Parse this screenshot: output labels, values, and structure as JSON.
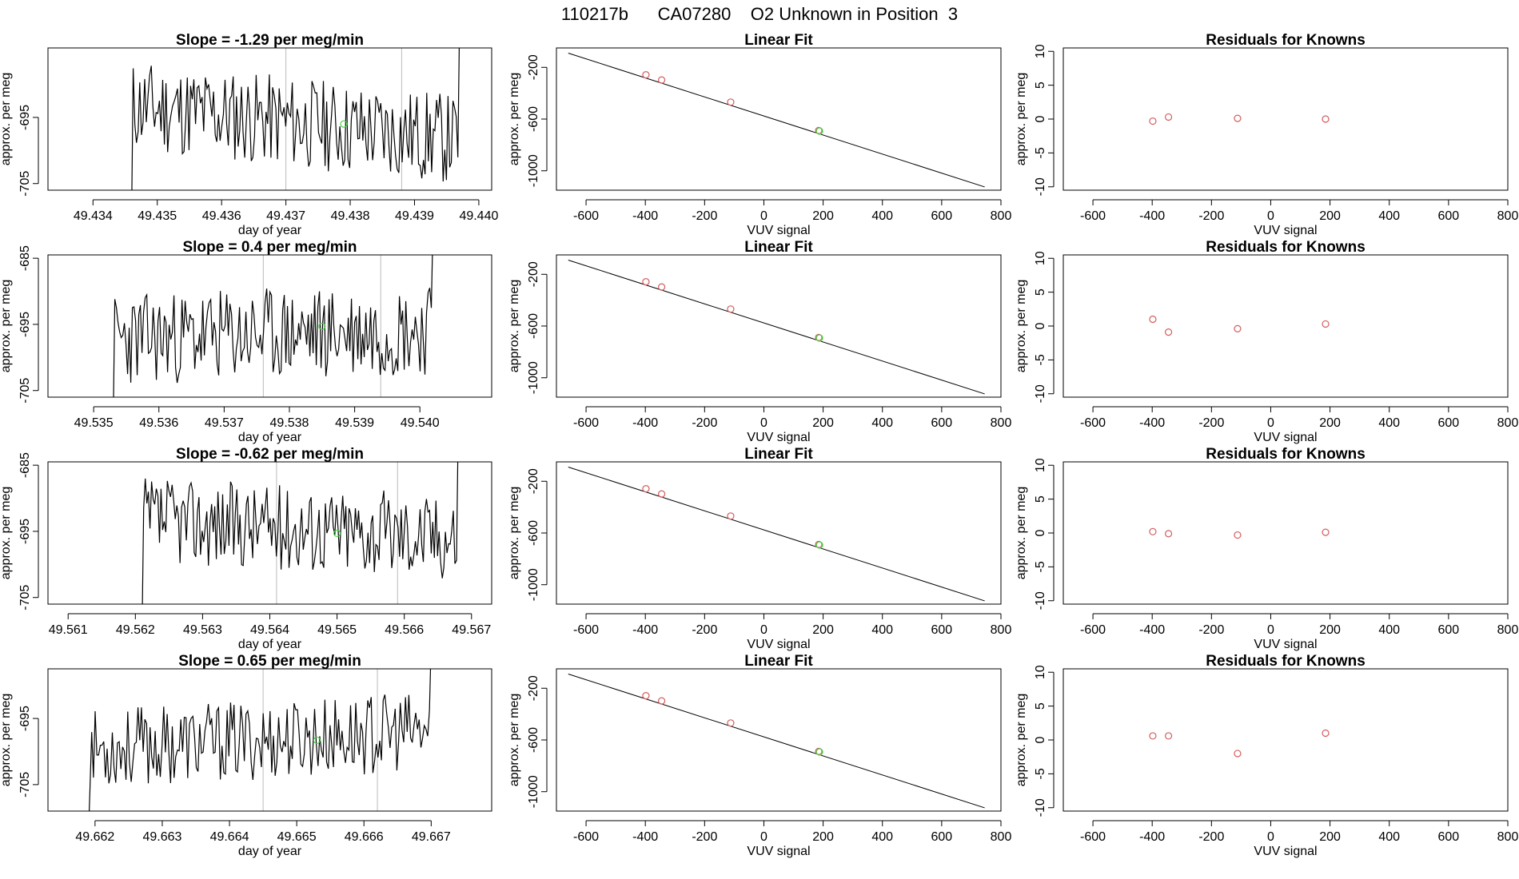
{
  "title": "110217b      CA07280    O2 Unknown in Position  3",
  "colors": {
    "line": "#000000",
    "frame": "#000000",
    "marker_known": "#d35c5c",
    "marker_unknown": "#44d444",
    "vline": "#bbbbbb"
  },
  "chart_data": [
    {
      "type": "line",
      "panel": "timeseries-1",
      "title": "Slope =  -1.29  per meg/min",
      "xlabel": "day of year",
      "ylabel": "approx. per meg",
      "xlim": [
        49.4333,
        49.4402
      ],
      "ylim": [
        -706,
        -684.5
      ],
      "xticks": [
        "49.434",
        "49.435",
        "49.436",
        "49.437",
        "49.438",
        "49.439",
        "49.440"
      ],
      "xtick_values": [
        49.434,
        49.435,
        49.436,
        49.437,
        49.438,
        49.439,
        49.44
      ],
      "yticks": [
        "-695",
        "-705"
      ],
      "ytick_values": [
        -695,
        -705
      ],
      "vlines": [
        49.437,
        49.4388
      ],
      "series_start": 49.4346,
      "series_end": 49.4397,
      "seed": 11,
      "trend": -1.29,
      "mean": -695.8,
      "amp": 7,
      "unknown_point": {
        "x": 49.4379,
        "y": -696
      }
    },
    {
      "type": "scatter",
      "panel": "linfit-1",
      "title": "Linear Fit",
      "xlabel": "VUV signal",
      "ylabel": "approx. per meg",
      "xlim": [
        -700,
        800
      ],
      "ylim": [
        -1150,
        -50
      ],
      "xticks": [
        "-600",
        "-400",
        "-200",
        "0",
        "200",
        "400",
        "600",
        "800"
      ],
      "xtick_values": [
        -600,
        -400,
        -200,
        0,
        200,
        400,
        600,
        800
      ],
      "yticks": [
        "-200",
        "-600",
        "-1000"
      ],
      "ytick_values": [
        -200,
        -600,
        -1000
      ],
      "fit_line": {
        "x": [
          -660,
          745
        ],
        "y": [
          -90,
          -1125
        ]
      },
      "points": {
        "x": [
          -398,
          -345,
          -112,
          185
        ],
        "y": [
          -258,
          -298,
          -469,
          -689
        ]
      },
      "unknown_point": {
        "x": 188,
        "y": -693
      }
    },
    {
      "type": "scatter",
      "panel": "resid-1",
      "title": "Residuals for Knowns",
      "xlabel": "VUV signal",
      "ylabel": "approx. per meg",
      "xlim": [
        -700,
        800
      ],
      "ylim": [
        -10.5,
        10.5
      ],
      "xticks": [
        "-600",
        "-400",
        "-200",
        "0",
        "200",
        "400",
        "600",
        "800"
      ],
      "xtick_values": [
        -600,
        -400,
        -200,
        0,
        200,
        400,
        600,
        800
      ],
      "yticks": [
        "-10",
        "-5",
        "0",
        "5",
        "10"
      ],
      "ytick_values": [
        -10,
        -5,
        0,
        5,
        10
      ],
      "points": {
        "x": [
          -398,
          -345,
          -112,
          185
        ],
        "y": [
          -0.3,
          0.3,
          0.1,
          0.0
        ]
      }
    },
    {
      "type": "line",
      "panel": "timeseries-2",
      "title": "Slope =  0.4  per meg/min",
      "xlabel": "day of year",
      "ylabel": "approx. per meg",
      "xlim": [
        49.5343,
        49.5411
      ],
      "ylim": [
        -706,
        -684.5
      ],
      "xticks": [
        "49.535",
        "49.536",
        "49.537",
        "49.538",
        "49.539",
        "49.540"
      ],
      "xtick_values": [
        49.535,
        49.536,
        49.537,
        49.538,
        49.539,
        49.54
      ],
      "yticks": [
        "-685",
        "-695",
        "-705"
      ],
      "ytick_values": [
        -685,
        -695,
        -705
      ],
      "vlines": [
        49.5376,
        49.5394
      ],
      "series_start": 49.5353,
      "series_end": 49.5402,
      "seed": 23,
      "trend": 0.4,
      "mean": -696.5,
      "amp": 7,
      "unknown_point": {
        "x": 49.5385,
        "y": -695.3
      }
    },
    {
      "type": "scatter",
      "panel": "linfit-2",
      "title": "Linear Fit",
      "xlabel": "VUV signal",
      "ylabel": "approx. per meg",
      "xlim": [
        -700,
        800
      ],
      "ylim": [
        -1150,
        -50
      ],
      "xticks": [
        "-600",
        "-400",
        "-200",
        "0",
        "200",
        "400",
        "600",
        "800"
      ],
      "xtick_values": [
        -600,
        -400,
        -200,
        0,
        200,
        400,
        600,
        800
      ],
      "yticks": [
        "-200",
        "-600",
        "-1000"
      ],
      "ytick_values": [
        -200,
        -600,
        -1000
      ],
      "fit_line": {
        "x": [
          -660,
          745
        ],
        "y": [
          -90,
          -1125
        ]
      },
      "points": {
        "x": [
          -398,
          -345,
          -112,
          185
        ],
        "y": [
          -258,
          -298,
          -469,
          -689
        ]
      },
      "unknown_point": {
        "x": 188,
        "y": -693
      }
    },
    {
      "type": "scatter",
      "panel": "resid-2",
      "title": "Residuals for Knowns",
      "xlabel": "VUV signal",
      "ylabel": "approx. per meg",
      "xlim": [
        -700,
        800
      ],
      "ylim": [
        -10.5,
        10.5
      ],
      "xticks": [
        "-600",
        "-400",
        "-200",
        "0",
        "200",
        "400",
        "600",
        "800"
      ],
      "xtick_values": [
        -600,
        -400,
        -200,
        0,
        200,
        400,
        600,
        800
      ],
      "yticks": [
        "-10",
        "-5",
        "0",
        "5",
        "10"
      ],
      "ytick_values": [
        -10,
        -5,
        0,
        5,
        10
      ],
      "points": {
        "x": [
          -398,
          -345,
          -112,
          185
        ],
        "y": [
          1.0,
          -0.9,
          -0.4,
          0.3
        ]
      }
    },
    {
      "type": "line",
      "panel": "timeseries-3",
      "title": "Slope =  -0.62  per meg/min",
      "xlabel": "day of year",
      "ylabel": "approx. per meg",
      "xlim": [
        49.5607,
        49.5673
      ],
      "ylim": [
        -706,
        -684.5
      ],
      "xticks": [
        "49.561",
        "49.562",
        "49.563",
        "49.564",
        "49.565",
        "49.566",
        "49.567"
      ],
      "xtick_values": [
        49.561,
        49.562,
        49.563,
        49.564,
        49.565,
        49.566,
        49.567
      ],
      "yticks": [
        "-685",
        "-695",
        "-705"
      ],
      "ytick_values": [
        -685,
        -695,
        -705
      ],
      "vlines": [
        49.5641,
        49.5659
      ],
      "series_start": 49.5621,
      "series_end": 49.5668,
      "seed": 37,
      "trend": -0.62,
      "mean": -694.5,
      "amp": 6.5,
      "unknown_point": {
        "x": 49.565,
        "y": -695.3
      }
    },
    {
      "type": "scatter",
      "panel": "linfit-3",
      "title": "Linear Fit",
      "xlabel": "VUV signal",
      "ylabel": "approx. per meg",
      "xlim": [
        -700,
        800
      ],
      "ylim": [
        -1150,
        -50
      ],
      "xticks": [
        "-600",
        "-400",
        "-200",
        "0",
        "200",
        "400",
        "600",
        "800"
      ],
      "xtick_values": [
        -600,
        -400,
        -200,
        0,
        200,
        400,
        600,
        800
      ],
      "yticks": [
        "-200",
        "-600",
        "-1000"
      ],
      "ytick_values": [
        -200,
        -600,
        -1000
      ],
      "fit_line": {
        "x": [
          -660,
          745
        ],
        "y": [
          -90,
          -1125
        ]
      },
      "points": {
        "x": [
          -398,
          -345,
          -112,
          185
        ],
        "y": [
          -258,
          -298,
          -469,
          -689
        ]
      },
      "unknown_point": {
        "x": 188,
        "y": -693
      }
    },
    {
      "type": "scatter",
      "panel": "resid-3",
      "title": "Residuals for Knowns",
      "xlabel": "VUV signal",
      "ylabel": "approx. per meg",
      "xlim": [
        -700,
        800
      ],
      "ylim": [
        -10.5,
        10.5
      ],
      "xticks": [
        "-600",
        "-400",
        "-200",
        "0",
        "200",
        "400",
        "600",
        "800"
      ],
      "xtick_values": [
        -600,
        -400,
        -200,
        0,
        200,
        400,
        600,
        800
      ],
      "yticks": [
        "-10",
        "-5",
        "0",
        "5",
        "10"
      ],
      "ytick_values": [
        -10,
        -5,
        0,
        5,
        10
      ],
      "points": {
        "x": [
          -398,
          -345,
          -112,
          185
        ],
        "y": [
          0.2,
          -0.1,
          -0.3,
          0.1
        ]
      }
    },
    {
      "type": "line",
      "panel": "timeseries-4",
      "title": "Slope =  0.65  per meg/min",
      "xlabel": "day of year",
      "ylabel": "approx. per meg",
      "xlim": [
        49.6613,
        49.6679
      ],
      "ylim": [
        -709,
        -687.5
      ],
      "xticks": [
        "49.662",
        "49.663",
        "49.664",
        "49.665",
        "49.666",
        "49.667"
      ],
      "xtick_values": [
        49.662,
        49.663,
        49.664,
        49.665,
        49.666,
        49.667
      ],
      "yticks": [
        "-695",
        "-705"
      ],
      "ytick_values": [
        -695,
        -705
      ],
      "vlines": [
        49.6645,
        49.6662
      ],
      "series_start": 49.6619,
      "series_end": 49.667,
      "seed": 53,
      "trend": 0.65,
      "mean": -698.3,
      "amp": 6,
      "unknown_point": {
        "x": 49.6653,
        "y": -698.3
      }
    },
    {
      "type": "scatter",
      "panel": "linfit-4",
      "title": "Linear Fit",
      "xlabel": "VUV signal",
      "ylabel": "approx. per meg",
      "xlim": [
        -700,
        800
      ],
      "ylim": [
        -1150,
        -50
      ],
      "xticks": [
        "-600",
        "-400",
        "-200",
        "0",
        "200",
        "400",
        "600",
        "800"
      ],
      "xtick_values": [
        -600,
        -400,
        -200,
        0,
        200,
        400,
        600,
        800
      ],
      "yticks": [
        "-200",
        "-600",
        "-1000"
      ],
      "ytick_values": [
        -200,
        -600,
        -1000
      ],
      "fit_line": {
        "x": [
          -660,
          745
        ],
        "y": [
          -90,
          -1125
        ]
      },
      "points": {
        "x": [
          -398,
          -345,
          -112,
          185
        ],
        "y": [
          -258,
          -298,
          -469,
          -689
        ]
      },
      "unknown_point": {
        "x": 188,
        "y": -693
      }
    },
    {
      "type": "scatter",
      "panel": "resid-4",
      "title": "Residuals for Knowns",
      "xlabel": "VUV signal",
      "ylabel": "approx. per meg",
      "xlim": [
        -700,
        800
      ],
      "ylim": [
        -10.5,
        10.5
      ],
      "xticks": [
        "-600",
        "-400",
        "-200",
        "0",
        "200",
        "400",
        "600",
        "800"
      ],
      "xtick_values": [
        -600,
        -400,
        -200,
        0,
        200,
        400,
        600,
        800
      ],
      "yticks": [
        "-10",
        "-5",
        "0",
        "5",
        "10"
      ],
      "ytick_values": [
        -10,
        -5,
        0,
        5,
        10
      ],
      "points": {
        "x": [
          -398,
          -345,
          -112,
          185
        ],
        "y": [
          0.6,
          0.6,
          -2.0,
          1.0
        ]
      }
    }
  ]
}
